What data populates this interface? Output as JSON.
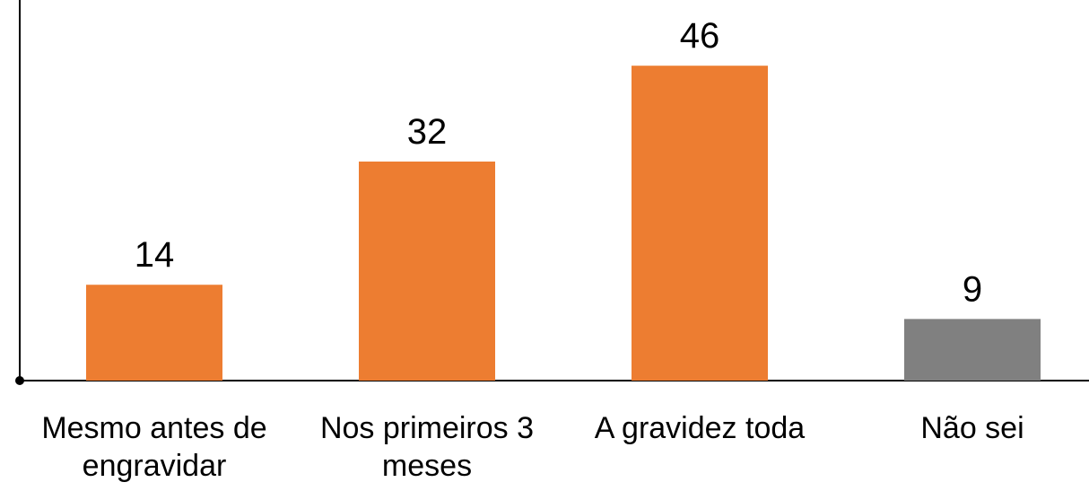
{
  "chart_data": {
    "type": "bar",
    "categories": [
      "Mesmo antes de engravidar",
      "Nos primeiros 3 meses",
      "A gravidez toda",
      "Não sei"
    ],
    "values": [
      14,
      32,
      46,
      9
    ],
    "colors": [
      "#ed7d31",
      "#ed7d31",
      "#ed7d31",
      "#808080"
    ],
    "ylim": [
      0,
      55.6
    ]
  }
}
